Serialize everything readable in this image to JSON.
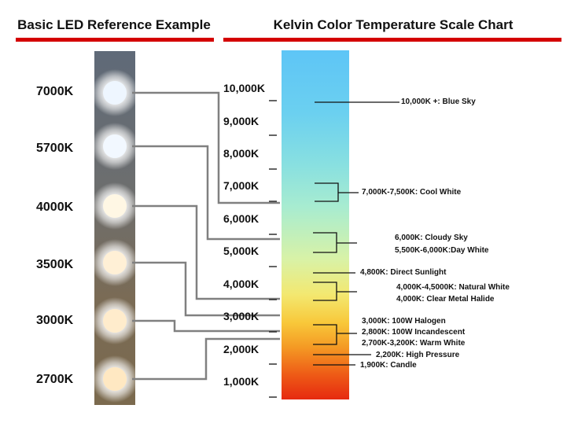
{
  "headers": {
    "left": "Basic LED Reference Example",
    "right": "Kelvin Color Temperature Scale Chart"
  },
  "colors": {
    "accent": "#d40000",
    "connector": "#808080"
  },
  "leds": [
    {
      "label": "7000K",
      "color": "#eef6ff"
    },
    {
      "label": "5700K",
      "color": "#f2f8ff"
    },
    {
      "label": "4000K",
      "color": "#fff7e4"
    },
    {
      "label": "3500K",
      "color": "#fff0d6"
    },
    {
      "label": "3000K",
      "color": "#ffeccc"
    },
    {
      "label": "2700K",
      "color": "#ffe8c2"
    }
  ],
  "scale": [
    "10,000K",
    "9,000K",
    "8,000K",
    "7,000K",
    "6,000K",
    "5,000K",
    "4,000K",
    "3,000K",
    "2,000K",
    "1,000K"
  ],
  "annotations": [
    "10,000K +: Blue Sky",
    "7,000K-7,500K: Cool White",
    "6,000K: Cloudy Sky",
    "5,500K-6,000K:Day White",
    "4,800K: Direct Sunlight",
    "4,000K-4,5000K: Natural White",
    "4,000K: Clear Metal Halide",
    "3,000K: 100W Halogen",
    "2,800K: 100W Incandescent",
    "2,700K-3,200K: Warm White",
    "2,200K: High Pressure",
    "1,900K: Candle"
  ]
}
